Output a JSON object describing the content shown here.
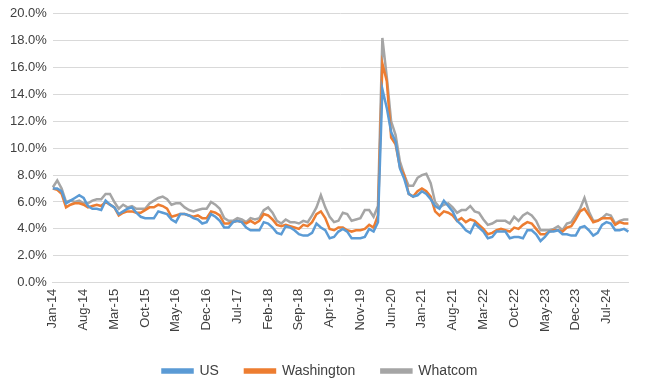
{
  "chart_data": {
    "type": "line",
    "categories": [
      "Jan-14",
      null,
      null,
      null,
      null,
      null,
      null,
      "Aug-14",
      null,
      null,
      null,
      null,
      null,
      null,
      "Mar-15",
      null,
      null,
      null,
      null,
      null,
      null,
      "Oct-15",
      null,
      null,
      null,
      null,
      null,
      null,
      "May-16",
      null,
      null,
      null,
      null,
      null,
      null,
      "Dec-16",
      null,
      null,
      null,
      null,
      null,
      null,
      "Jul-17",
      null,
      null,
      null,
      null,
      null,
      null,
      "Feb-18",
      null,
      null,
      null,
      null,
      null,
      null,
      "Sep-18",
      null,
      null,
      null,
      null,
      null,
      null,
      "Apr-19",
      null,
      null,
      null,
      null,
      null,
      null,
      "Nov-19",
      null,
      null,
      null,
      null,
      null,
      null,
      "Jun-20",
      null,
      null,
      null,
      null,
      null,
      null,
      "Jan-21",
      null,
      null,
      null,
      null,
      null,
      null,
      "Aug-21",
      null,
      null,
      null,
      null,
      null,
      null,
      "Mar-22",
      null,
      null,
      null,
      null,
      null,
      null,
      "Oct-22",
      null,
      null,
      null,
      null,
      null,
      null,
      "May-23",
      null,
      null,
      null,
      null,
      null,
      null,
      "Dec-23",
      null,
      null,
      null,
      null,
      null,
      null,
      "Jul-24",
      null,
      null,
      null,
      null,
      null
    ],
    "series": [
      {
        "name": "US",
        "color": "#5b9bd5",
        "values": [
          7.0,
          7.0,
          6.8,
          5.9,
          6.1,
          6.3,
          6.5,
          6.3,
          5.7,
          5.5,
          5.5,
          5.4,
          6.1,
          5.8,
          5.6,
          5.1,
          5.3,
          5.5,
          5.6,
          5.2,
          4.9,
          4.8,
          4.8,
          4.8,
          5.3,
          5.2,
          5.1,
          4.7,
          4.5,
          5.1,
          5.1,
          5.0,
          4.8,
          4.7,
          4.4,
          4.5,
          5.1,
          4.9,
          4.6,
          4.1,
          4.1,
          4.5,
          4.6,
          4.5,
          4.1,
          3.9,
          3.9,
          3.9,
          4.5,
          4.4,
          4.1,
          3.7,
          3.6,
          4.2,
          4.1,
          3.9,
          3.6,
          3.5,
          3.5,
          3.7,
          4.4,
          4.1,
          3.9,
          3.3,
          3.4,
          3.8,
          4.0,
          3.8,
          3.3,
          3.3,
          3.3,
          3.4,
          4.0,
          3.8,
          4.5,
          14.4,
          13.0,
          11.2,
          10.5,
          8.5,
          7.7,
          6.6,
          6.4,
          6.5,
          6.8,
          6.6,
          6.2,
          5.7,
          5.5,
          6.1,
          5.7,
          5.3,
          4.6,
          4.3,
          3.9,
          3.7,
          4.4,
          4.1,
          3.8,
          3.3,
          3.4,
          3.8,
          3.8,
          3.8,
          3.3,
          3.4,
          3.4,
          3.3,
          3.9,
          3.9,
          3.6,
          3.1,
          3.4,
          3.8,
          3.8,
          3.9,
          3.6,
          3.6,
          3.5,
          3.5,
          4.1,
          4.2,
          3.9,
          3.5,
          3.7,
          4.3,
          4.5,
          4.4,
          3.9,
          3.9,
          4.0,
          3.8
        ]
      },
      {
        "name": "Washington",
        "color": "#ed7d31",
        "values": [
          7.0,
          6.9,
          6.6,
          5.6,
          5.8,
          5.9,
          5.9,
          5.8,
          5.6,
          5.7,
          5.8,
          5.7,
          6.0,
          5.8,
          5.6,
          5.0,
          5.2,
          5.3,
          5.3,
          5.2,
          5.2,
          5.4,
          5.6,
          5.6,
          5.8,
          5.7,
          5.5,
          4.9,
          5.0,
          5.1,
          5.1,
          5.0,
          4.9,
          5.0,
          4.8,
          4.8,
          5.3,
          5.2,
          5.0,
          4.4,
          4.4,
          4.5,
          4.6,
          4.5,
          4.4,
          4.6,
          4.4,
          4.6,
          5.1,
          5.0,
          4.7,
          4.3,
          4.2,
          4.3,
          4.2,
          4.1,
          4.0,
          4.3,
          4.2,
          4.5,
          5.1,
          5.3,
          4.8,
          4.0,
          3.9,
          4.1,
          4.1,
          3.9,
          3.8,
          3.9,
          3.9,
          4.0,
          4.3,
          4.1,
          5.0,
          16.3,
          15.0,
          10.8,
          10.3,
          8.6,
          8.0,
          6.6,
          6.4,
          6.8,
          7.0,
          6.8,
          6.4,
          5.3,
          5.0,
          5.3,
          5.2,
          5.0,
          4.6,
          4.8,
          4.5,
          4.7,
          4.6,
          4.3,
          4.0,
          3.6,
          3.7,
          3.9,
          4.0,
          3.9,
          3.8,
          4.1,
          4.0,
          4.3,
          4.5,
          4.4,
          4.0,
          3.6,
          3.6,
          3.8,
          3.9,
          3.9,
          3.8,
          4.1,
          4.2,
          4.7,
          5.3,
          5.5,
          5.0,
          4.5,
          4.6,
          4.8,
          4.8,
          4.8,
          4.3,
          4.5,
          4.4,
          4.4
        ]
      },
      {
        "name": "Whatcom",
        "color": "#a5a5a5",
        "values": [
          7.1,
          7.6,
          7.0,
          6.0,
          6.1,
          6.0,
          6.1,
          5.9,
          5.9,
          6.1,
          6.2,
          6.2,
          6.6,
          6.6,
          6.0,
          5.5,
          5.8,
          5.6,
          5.7,
          5.5,
          5.5,
          5.5,
          5.9,
          6.1,
          6.3,
          6.4,
          6.2,
          5.8,
          5.9,
          5.9,
          5.6,
          5.4,
          5.3,
          5.4,
          5.5,
          5.5,
          6.0,
          5.8,
          5.5,
          4.8,
          4.6,
          4.6,
          4.8,
          4.7,
          4.5,
          4.8,
          4.7,
          4.8,
          5.4,
          5.6,
          5.2,
          4.6,
          4.4,
          4.7,
          4.5,
          4.5,
          4.4,
          4.6,
          4.5,
          5.0,
          5.6,
          6.5,
          5.6,
          4.9,
          4.5,
          4.6,
          5.2,
          5.1,
          4.6,
          4.7,
          4.8,
          5.4,
          5.4,
          4.9,
          5.7,
          18.2,
          15.3,
          12.0,
          11.0,
          9.0,
          8.0,
          7.2,
          7.2,
          7.8,
          8.0,
          8.1,
          7.4,
          6.0,
          5.6,
          5.8,
          5.9,
          5.6,
          5.2,
          5.4,
          5.4,
          5.7,
          5.3,
          5.2,
          4.7,
          4.3,
          4.4,
          4.6,
          4.6,
          4.6,
          4.4,
          4.9,
          4.6,
          5.0,
          5.2,
          5.0,
          4.6,
          3.9,
          3.9,
          3.9,
          4.0,
          4.2,
          3.9,
          4.4,
          4.5,
          5.0,
          5.5,
          6.3,
          5.3,
          4.6,
          4.6,
          4.8,
          5.1,
          5.0,
          4.4,
          4.6,
          4.7,
          4.7
        ]
      }
    ],
    "ylim": [
      0,
      20
    ],
    "yticks": [
      {
        "value": 0,
        "label": "0.0%"
      },
      {
        "value": 2,
        "label": "2.0%"
      },
      {
        "value": 4,
        "label": "4.0%"
      },
      {
        "value": 6,
        "label": "6.0%"
      },
      {
        "value": 8,
        "label": "8.0%"
      },
      {
        "value": 10,
        "label": "10.0%"
      },
      {
        "value": 12,
        "label": "12.0%"
      },
      {
        "value": 14,
        "label": "14.0%"
      },
      {
        "value": 16,
        "label": "16.0%"
      },
      {
        "value": 18,
        "label": "18.0%"
      },
      {
        "value": 20,
        "label": "20.0%"
      }
    ],
    "grid": true,
    "legend": "bottom"
  }
}
